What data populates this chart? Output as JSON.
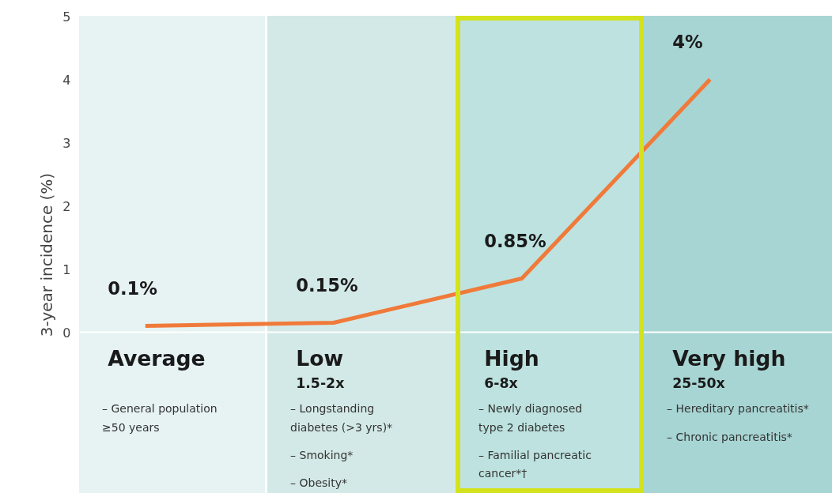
{
  "chart_data": {
    "type": "line",
    "ylabel": "3-year incidence (%)",
    "categories": [
      "Average",
      "Low\n1.5-2x",
      "High\n6-8x",
      "Very high\n25-50x"
    ],
    "values": [
      0.1,
      0.15,
      0.85,
      4
    ],
    "value_labels": [
      "0.1%",
      "0.15%",
      "0.85%",
      "4%"
    ],
    "color": "#f07a3a",
    "marker": "none",
    "line_style": "solid",
    "grid": false,
    "ylim": [
      0,
      5
    ],
    "yticks": [
      0,
      1,
      2,
      3,
      4,
      5
    ],
    "annotations": [
      "– General population\n   ≥50 years",
      "– Longstanding\n   diabetes (>3 yrs)*\n\n– Smoking*\n\n– Obesity*",
      "– Newly diagnosed\n   type 2 diabetes\n\n– Familial pancreatic\n   cancer*†",
      "– Hereditary pancreatitis*\n\n– Chronic pancreatitis*"
    ]
  }
}
